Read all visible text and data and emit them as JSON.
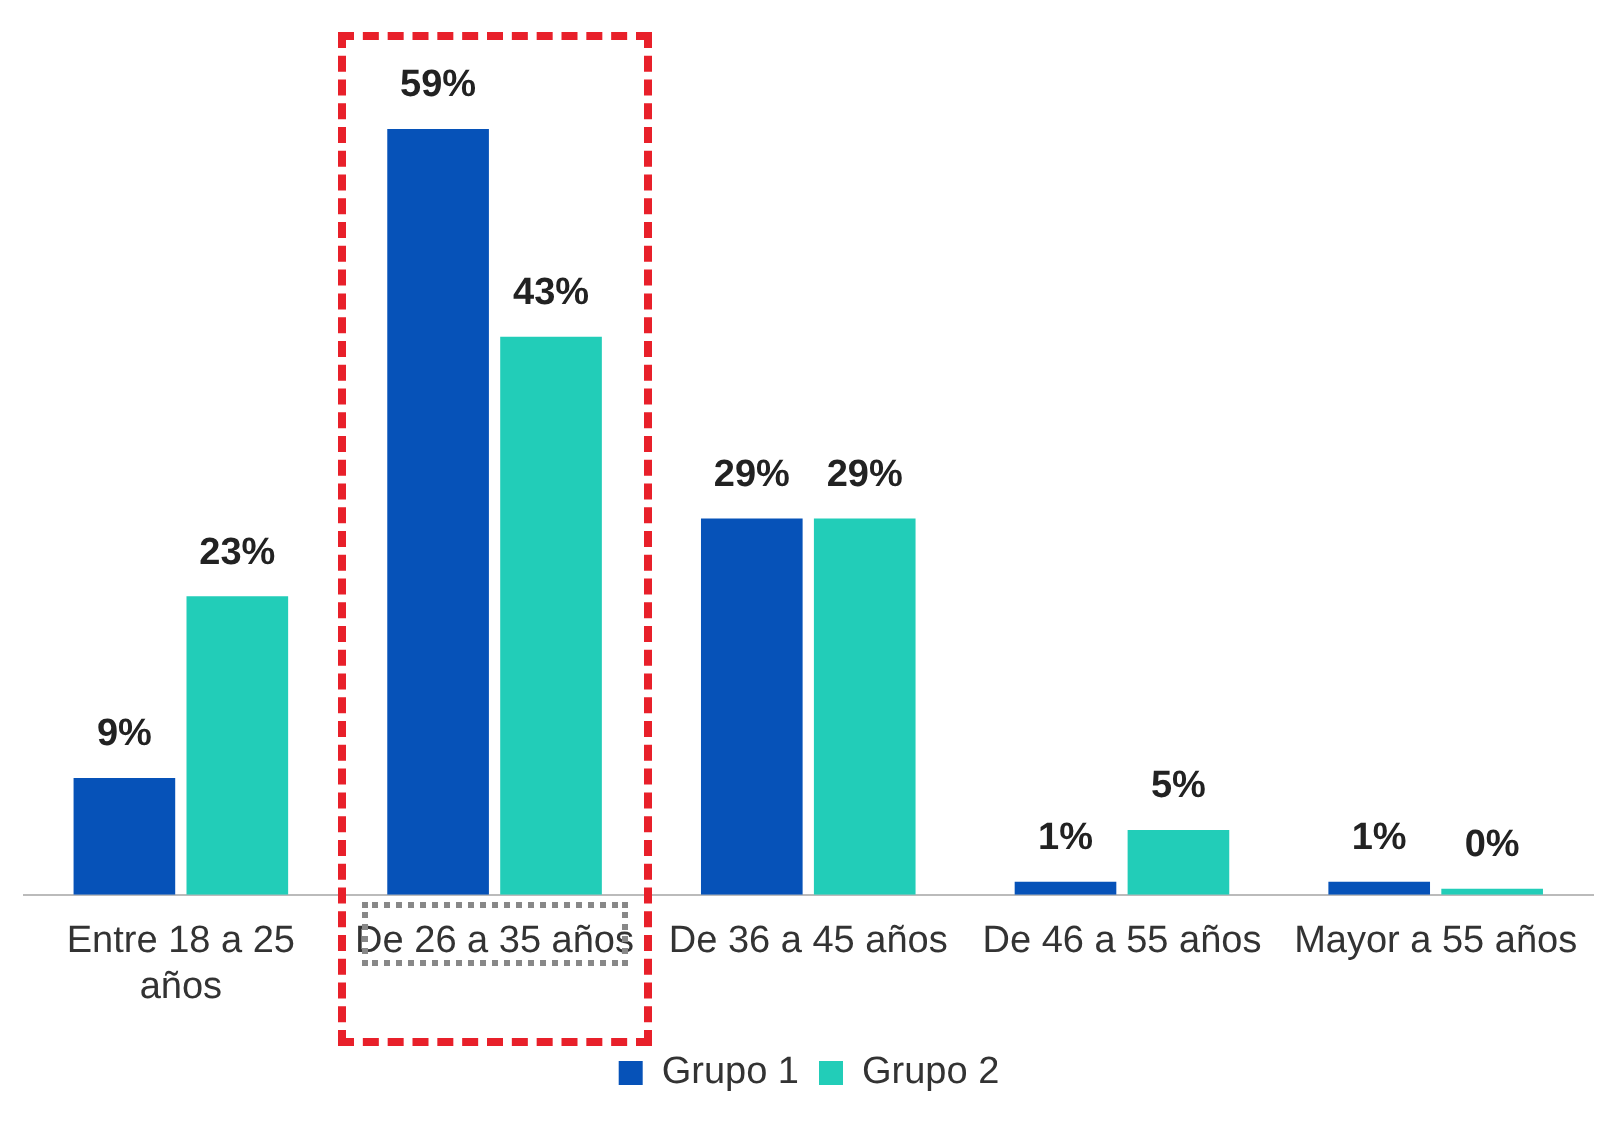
{
  "chart_data": {
    "type": "bar",
    "categories": [
      "Entre 18 a 25 años",
      "De 26 a 35 años",
      "De 36 a 45 años",
      "De 46 a 55 años",
      "Mayor a 55 años"
    ],
    "series": [
      {
        "name": "Grupo 1",
        "color": "#0652b8",
        "values": [
          9,
          59,
          29,
          1,
          1
        ],
        "value_labels": [
          "9%",
          "59%",
          "29%",
          "1%",
          "1%"
        ]
      },
      {
        "name": "Grupo 2",
        "color": "#22cdb8",
        "values": [
          23,
          43,
          29,
          5,
          0
        ],
        "value_labels": [
          "23%",
          "43%",
          "29%",
          "5%",
          "0%"
        ]
      }
    ],
    "legend": "bottom",
    "grid": false
  }
}
